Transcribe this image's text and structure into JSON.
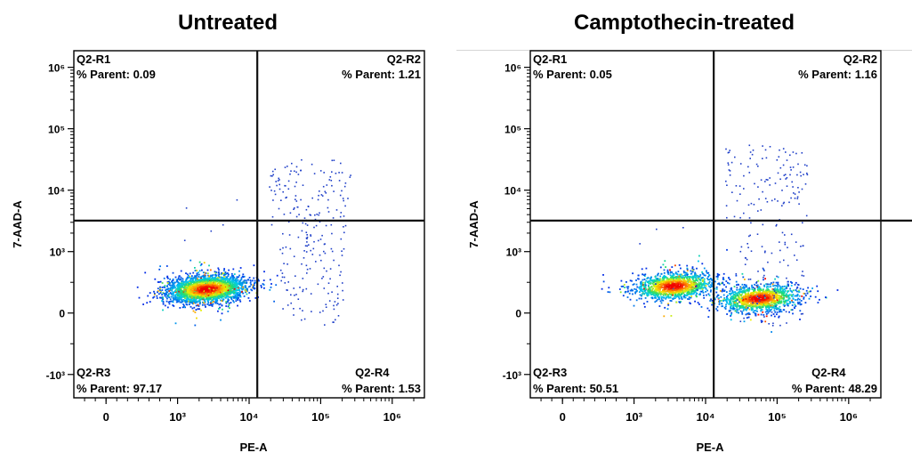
{
  "chart_data": [
    {
      "type": "scatter",
      "title": "Untreated",
      "xlabel": "PE-A",
      "ylabel": "7-AAD-A",
      "x_scale": "biexponential",
      "y_scale": "biexponential",
      "x_tick_labels": [
        "0",
        "10³",
        "10⁴",
        "10⁵",
        "10⁶"
      ],
      "x_tick_values": [
        0,
        1000,
        10000,
        100000,
        1000000
      ],
      "y_tick_labels": [
        "-10³",
        "0",
        "10³",
        "10⁴",
        "10⁵",
        "10⁶"
      ],
      "y_tick_values": [
        -1000,
        0,
        1000,
        10000,
        100000,
        1000000
      ],
      "x_gate": 13000,
      "y_gate": 3200,
      "grid": false,
      "quadrants": [
        {
          "name": "Q2-R1",
          "label": "% Parent: 0.09",
          "value": 0.09
        },
        {
          "name": "Q2-R2",
          "label": "% Parent: 1.21",
          "value": 1.21
        },
        {
          "name": "Q2-R3",
          "label": "% Parent: 97.17",
          "value": 97.17
        },
        {
          "name": "Q2-R4",
          "label": "% Parent: 1.53",
          "value": 1.53
        }
      ],
      "populations": [
        {
          "center_x": 2500,
          "center_y": 400,
          "share": 0.97
        }
      ]
    },
    {
      "type": "scatter",
      "title": "Camptothecin-treated",
      "xlabel": "PE-A",
      "ylabel": "7-AAD-A",
      "x_scale": "biexponential",
      "y_scale": "biexponential",
      "x_tick_labels": [
        "0",
        "10³",
        "10⁴",
        "10⁵",
        "10⁶"
      ],
      "x_tick_values": [
        0,
        1000,
        10000,
        100000,
        1000000
      ],
      "y_tick_labels": [
        "-10³",
        "0",
        "10³",
        "10⁴",
        "10⁵",
        "10⁶"
      ],
      "y_tick_values": [
        -1000,
        0,
        1000,
        10000,
        100000,
        1000000
      ],
      "x_gate": 13000,
      "y_gate": 3200,
      "grid": false,
      "quadrants": [
        {
          "name": "Q2-R1",
          "label": "% Parent: 0.05",
          "value": 0.05
        },
        {
          "name": "Q2-R2",
          "label": "% Parent: 1.16",
          "value": 1.16
        },
        {
          "name": "Q2-R3",
          "label": "% Parent: 50.51",
          "value": 50.51
        },
        {
          "name": "Q2-R4",
          "label": "% Parent: 48.29",
          "value": 48.29
        }
      ],
      "populations": [
        {
          "center_x": 3500,
          "center_y": 450,
          "share": 0.51
        },
        {
          "center_x": 55000,
          "center_y": 250,
          "share": 0.48
        }
      ]
    }
  ]
}
